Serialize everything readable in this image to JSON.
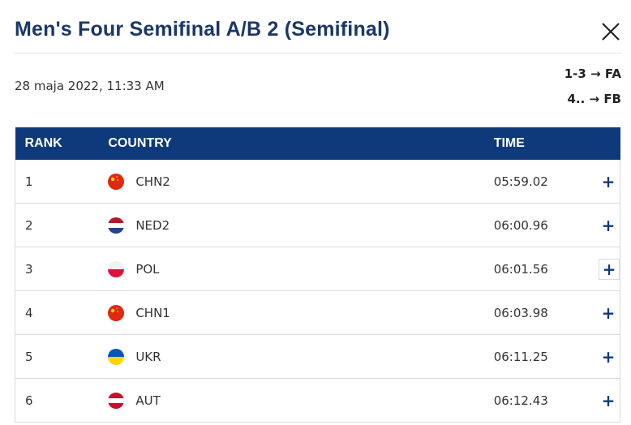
{
  "header": {
    "title": "Men's Four Semifinal A/B 2 (Semifinal)",
    "date": "28 maja 2022, 11:33 AM",
    "progression": [
      "1-3 → FA",
      "4.. → FB"
    ]
  },
  "table": {
    "columns": [
      "RANK",
      "COUNTRY",
      "TIME"
    ],
    "rows": [
      [
        "1",
        "CHN2",
        "05:59.02"
      ],
      [
        "2",
        "NED2",
        "06:00.96"
      ],
      [
        "3",
        "POL",
        "06:01.56"
      ],
      [
        "4",
        "CHN1",
        "06:03.98"
      ],
      [
        "5",
        "UKR",
        "06:11.25"
      ],
      [
        "6",
        "AUT",
        "06:12.43"
      ]
    ]
  }
}
